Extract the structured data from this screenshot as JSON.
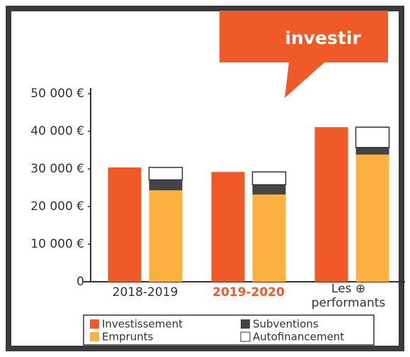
{
  "chart_data": {
    "type": "bar",
    "badge": "investir",
    "categories": [
      "2018-2019",
      "2019-2020",
      "Les ⊕ performants"
    ],
    "category_colors": [
      "#333333",
      "#f05a28",
      "#333333"
    ],
    "series": [
      {
        "name": "Investissement",
        "color": "#f05a28",
        "stack": 0,
        "values": [
          30400,
          29200,
          41100
        ]
      },
      {
        "name": "Emprunts",
        "color": "#fbb040",
        "stack": 1,
        "values": [
          24300,
          23200,
          33800
        ]
      },
      {
        "name": "Subventions",
        "color": "#444444",
        "stack": 1,
        "values": [
          2800,
          2600,
          1900
        ]
      },
      {
        "name": "Autofinancement",
        "color": "#ffffff",
        "stack": 1,
        "values": [
          3300,
          3400,
          5400
        ]
      }
    ],
    "ylim": [
      0,
      50000
    ],
    "yticks": [
      0,
      {
        "value": 10000,
        "label": "10 000 €"
      },
      {
        "value": 20000,
        "label": "20 000 €"
      },
      {
        "value": 30000,
        "label": "30 000 €"
      },
      {
        "value": 40000,
        "label": "40 000 €"
      },
      {
        "value": 50000,
        "label": "50 000 €"
      }
    ],
    "grid": false
  }
}
